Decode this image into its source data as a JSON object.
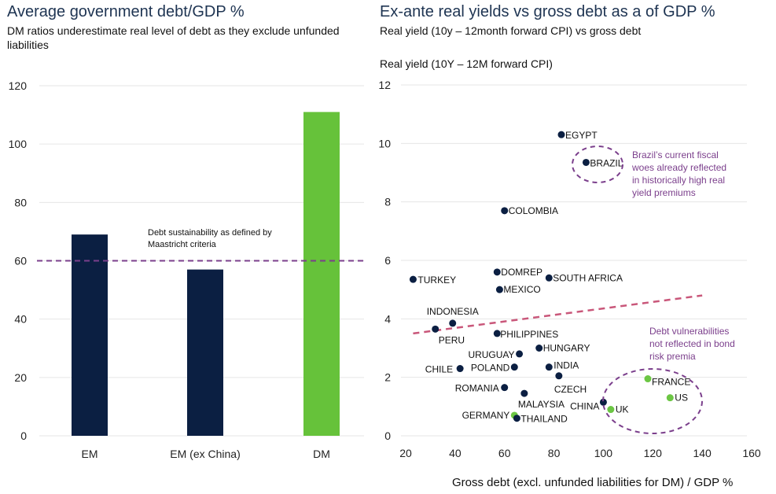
{
  "colors": {
    "em_bar": "#0b1f42",
    "dm_bar": "#66c23a",
    "em_point": "#0b1f42",
    "dm_point": "#6cc644",
    "threshold_line": "#7b3f8c",
    "trend_line": "#c9577a",
    "annotation": "#7b3f8c",
    "gridline": "#e6e6e6"
  },
  "chart_data": [
    {
      "type": "bar",
      "title": "Average government debt/GDP %",
      "subtitle": "DM ratios underestimate real level of debt as they exclude unfunded liabilities",
      "categories": [
        "EM",
        "EM (ex China)",
        "DM"
      ],
      "values": [
        69,
        57,
        111
      ],
      "groups": [
        "EM",
        "EM",
        "DM"
      ],
      "xlabel": "",
      "ylabel": "",
      "ylim": [
        0,
        120
      ],
      "yticks": [
        0,
        20,
        40,
        60,
        80,
        100,
        120
      ],
      "grid": true,
      "reference_line": {
        "y": 60,
        "label": "Debt sustainability as defined by Maastricht criteria",
        "label_lines": [
          "Debt sustainability as defined by",
          "Maastricht criteria"
        ]
      }
    },
    {
      "type": "scatter",
      "title": "Ex-ante real yields vs gross debt as a of GDP %",
      "subtitle": "Real yield (10y – 12month forward CPI) vs gross debt",
      "ylabel": "Real yield (10Y – 12M forward CPI)",
      "xlabel": "Gross debt (excl. unfunded liabilities for DM) / GDP %",
      "xlim": [
        20,
        160
      ],
      "ylim": [
        0,
        12
      ],
      "xticks": [
        20,
        40,
        60,
        80,
        100,
        120,
        140,
        160
      ],
      "yticks": [
        0,
        2,
        4,
        6,
        8,
        10,
        12
      ],
      "grid": true,
      "points": [
        {
          "label": "EGYPT",
          "x": 83,
          "y": 10.3,
          "group": "EM"
        },
        {
          "label": "BRAZIL",
          "x": 93,
          "y": 9.35,
          "group": "EM"
        },
        {
          "label": "COLOMBIA",
          "x": 60,
          "y": 7.7,
          "group": "EM"
        },
        {
          "label": "TURKEY",
          "x": 23,
          "y": 5.35,
          "group": "EM"
        },
        {
          "label": "DOMREP",
          "x": 57,
          "y": 5.6,
          "group": "EM"
        },
        {
          "label": "MEXICO",
          "x": 58,
          "y": 5.0,
          "group": "EM"
        },
        {
          "label": "SOUTH AFRICA",
          "x": 78,
          "y": 5.4,
          "group": "EM"
        },
        {
          "label": "INDONESIA",
          "x": 39,
          "y": 3.85,
          "group": "EM"
        },
        {
          "label": "PERU",
          "x": 32,
          "y": 3.65,
          "group": "EM"
        },
        {
          "label": "PHILIPPINES",
          "x": 57,
          "y": 3.5,
          "group": "EM"
        },
        {
          "label": "HUNGARY",
          "x": 74,
          "y": 3.0,
          "group": "EM"
        },
        {
          "label": "URUGUAY",
          "x": 66,
          "y": 2.8,
          "group": "EM"
        },
        {
          "label": "POLAND",
          "x": 64,
          "y": 2.35,
          "group": "EM"
        },
        {
          "label": "CHILE",
          "x": 42,
          "y": 2.3,
          "group": "EM"
        },
        {
          "label": "INDIA",
          "x": 78,
          "y": 2.35,
          "group": "EM"
        },
        {
          "label": "CZECH",
          "x": 82,
          "y": 2.05,
          "group": "EM"
        },
        {
          "label": "ROMANIA",
          "x": 60,
          "y": 1.65,
          "group": "EM"
        },
        {
          "label": "MALAYSIA",
          "x": 68,
          "y": 1.45,
          "group": "EM"
        },
        {
          "label": "CHINA",
          "x": 100,
          "y": 1.15,
          "group": "EM"
        },
        {
          "label": "GERMANY",
          "x": 64,
          "y": 0.7,
          "group": "DM"
        },
        {
          "label": "THAILAND",
          "x": 65,
          "y": 0.6,
          "group": "EM"
        },
        {
          "label": "UK",
          "x": 103,
          "y": 0.9,
          "group": "DM"
        },
        {
          "label": "FRANCE",
          "x": 118,
          "y": 1.95,
          "group": "DM"
        },
        {
          "label": "US",
          "x": 127,
          "y": 1.3,
          "group": "DM"
        }
      ],
      "trend_line": {
        "x": [
          23,
          140
        ],
        "y": [
          3.5,
          4.8
        ]
      },
      "annotations": [
        {
          "text_lines": [
            "Brazil’s current fiscal",
            "woes already reflected",
            "in historically high real",
            "yield premiums"
          ],
          "circled": [
            "BRAZIL"
          ]
        },
        {
          "text_lines": [
            "Debt vulnerabilities",
            "not reflected in bond",
            "risk premia"
          ],
          "circled": [
            "UK",
            "FRANCE",
            "US",
            "CHINA"
          ]
        }
      ]
    }
  ]
}
